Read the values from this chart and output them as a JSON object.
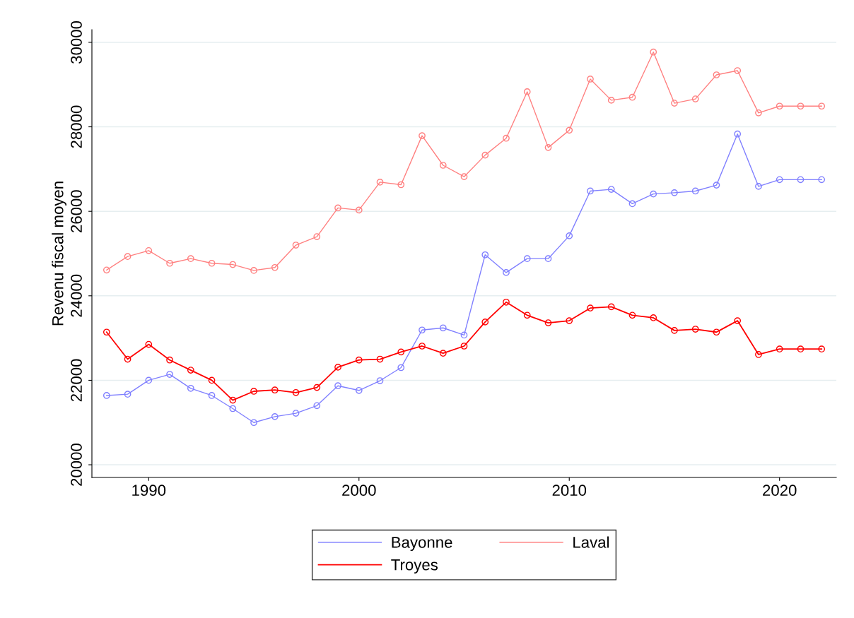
{
  "chart_data": {
    "type": "line",
    "ylabel": "Revenu fiscal moyen",
    "x": [
      1988,
      1989,
      1990,
      1991,
      1992,
      1993,
      1994,
      1995,
      1996,
      1997,
      1998,
      1999,
      2000,
      2001,
      2002,
      2003,
      2004,
      2005,
      2006,
      2007,
      2008,
      2009,
      2010,
      2011,
      2012,
      2013,
      2014,
      2015,
      2016,
      2017,
      2018,
      2019,
      2020,
      2021,
      2022
    ],
    "series": [
      {
        "name": "Bayonne",
        "color": "#8080ff",
        "values": [
          21640,
          21670,
          22000,
          22140,
          21810,
          21640,
          21330,
          21000,
          21140,
          21220,
          21400,
          21870,
          21760,
          21990,
          22300,
          23190,
          23240,
          23070,
          24970,
          24550,
          24880,
          24880,
          25420,
          26480,
          26520,
          26180,
          26410,
          26440,
          26480,
          26620,
          27830,
          26590,
          26750,
          26750,
          26750
        ]
      },
      {
        "name": "Laval",
        "color": "#ff8080",
        "values": [
          24610,
          24930,
          25070,
          24770,
          24880,
          24770,
          24740,
          24600,
          24670,
          25200,
          25400,
          26080,
          26030,
          26690,
          26630,
          27790,
          27090,
          26820,
          27330,
          27730,
          28830,
          27510,
          27920,
          29130,
          28630,
          28700,
          29770,
          28560,
          28660,
          29230,
          29330,
          28330,
          28490,
          28490,
          28490
        ]
      },
      {
        "name": "Troyes",
        "color": "#ff0000",
        "values": [
          23140,
          22500,
          22850,
          22480,
          22240,
          22000,
          21530,
          21740,
          21770,
          21710,
          21830,
          22310,
          22480,
          22500,
          22670,
          22810,
          22640,
          22810,
          23380,
          23850,
          23540,
          23360,
          23410,
          23710,
          23740,
          23540,
          23480,
          23180,
          23210,
          23140,
          23410,
          22610,
          22740,
          22740,
          22740
        ]
      }
    ],
    "xlim": [
      1987.3,
      2022.7
    ],
    "xticks": [
      1990,
      2000,
      2010,
      2020
    ],
    "ylim": [
      19700,
      30300
    ],
    "yticks": [
      20000,
      22000,
      24000,
      26000,
      28000,
      30000
    ],
    "grid": "y",
    "legend": "bottom",
    "marker": "circle",
    "line_style": "solid"
  }
}
